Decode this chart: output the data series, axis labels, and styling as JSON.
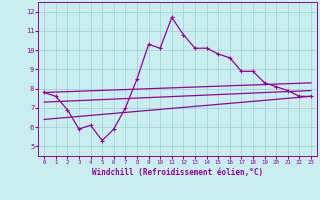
{
  "xlabel": "Windchill (Refroidissement éolien,°C)",
  "xlim": [
    -0.5,
    23.5
  ],
  "ylim": [
    4.5,
    12.5
  ],
  "yticks": [
    5,
    6,
    7,
    8,
    9,
    10,
    11,
    12
  ],
  "xticks": [
    0,
    1,
    2,
    3,
    4,
    5,
    6,
    7,
    8,
    9,
    10,
    11,
    12,
    13,
    14,
    15,
    16,
    17,
    18,
    19,
    20,
    21,
    22,
    23
  ],
  "bg_color": "#c8eef0",
  "line_color": "#990099",
  "grid_color": "#9ecece",
  "series1_x": [
    0,
    1,
    2,
    3,
    4,
    5,
    6,
    7,
    8,
    9,
    10,
    11,
    12,
    13,
    14,
    15,
    16,
    17,
    18,
    19,
    20,
    21,
    22,
    23
  ],
  "series1_y": [
    7.8,
    7.6,
    6.9,
    5.9,
    6.1,
    5.3,
    5.9,
    7.0,
    8.5,
    10.3,
    10.1,
    11.7,
    10.8,
    10.1,
    10.1,
    9.8,
    9.6,
    8.9,
    8.9,
    8.3,
    8.1,
    7.9,
    7.6,
    7.6
  ],
  "series2_x": [
    0,
    23
  ],
  "series2_y": [
    7.8,
    8.3
  ],
  "series3_x": [
    0,
    23
  ],
  "series3_y": [
    7.3,
    7.9
  ],
  "series4_x": [
    0,
    23
  ],
  "series4_y": [
    6.4,
    7.6
  ]
}
